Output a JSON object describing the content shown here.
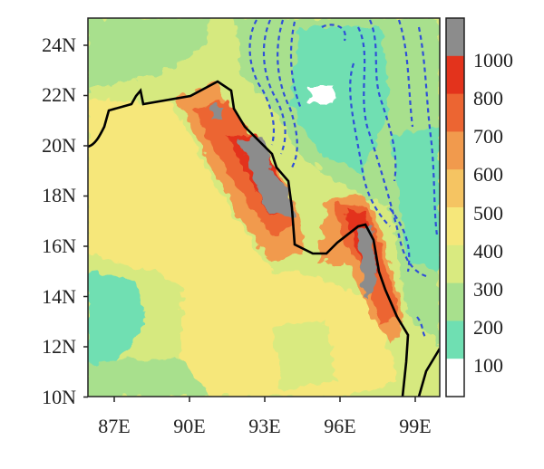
{
  "map": {
    "y_ticks": [
      "24N",
      "22N",
      "20N",
      "18N",
      "16N",
      "14N",
      "12N",
      "10N"
    ],
    "x_ticks": [
      "87E",
      "90E",
      "93E",
      "96E",
      "99E"
    ],
    "lat_range": [
      10,
      25
    ],
    "lon_range": [
      86,
      100
    ],
    "coastline": "black solid line",
    "contours": "blue dashed lines over land (north-east)"
  },
  "colorbar": {
    "labels": [
      "1000",
      "800",
      "700",
      "600",
      "500",
      "400",
      "300",
      "200",
      "100"
    ],
    "bins": [
      {
        "label": "",
        "color": "#8c8c8c"
      },
      {
        "label": "1000",
        "color": "#e3331c"
      },
      {
        "label": "800",
        "color": "#ec6532"
      },
      {
        "label": "700",
        "color": "#f19a4d"
      },
      {
        "label": "600",
        "color": "#f5c462"
      },
      {
        "label": "500",
        "color": "#f6e77a"
      },
      {
        "label": "400",
        "color": "#d9ea80"
      },
      {
        "label": "300",
        "color": "#a8e08d"
      },
      {
        "label": "200",
        "color": "#6fdfb2"
      },
      {
        "label": "100",
        "color": "#ffffff"
      }
    ]
  }
}
